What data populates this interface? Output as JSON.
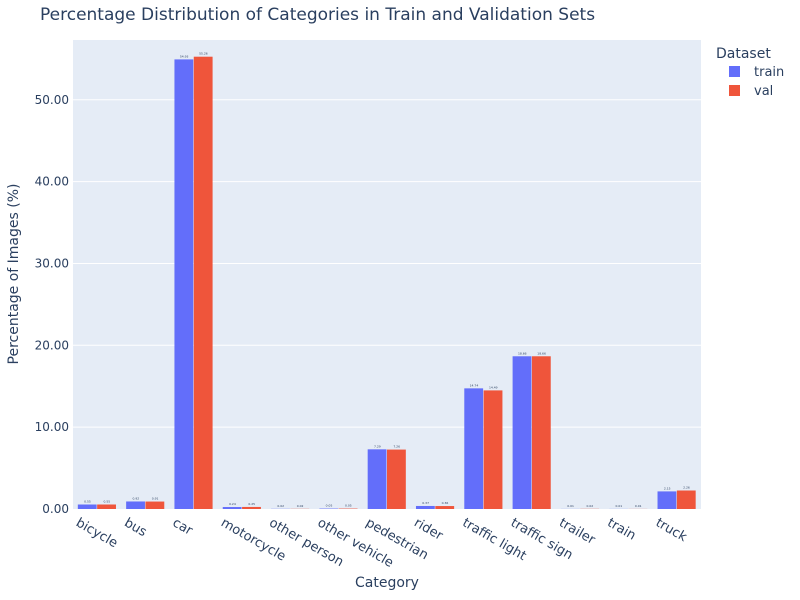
{
  "chart_data": {
    "type": "bar",
    "title": "Percentage Distribution of Categories in Train and Validation Sets",
    "xlabel": "Category",
    "ylabel": "Percentage of Images (%)",
    "ylim": [
      0,
      57.3
    ],
    "yticks": [
      "0.00",
      "10.00",
      "20.00",
      "30.00",
      "40.00",
      "50.00"
    ],
    "grid": true,
    "legend_title": "Dataset",
    "legend_position": "top-right",
    "categories": [
      "bicycle",
      "bus",
      "car",
      "motorcycle",
      "other person",
      "other vehicle",
      "pedestrian",
      "rider",
      "traffic light",
      "traffic sign",
      "trailer",
      "train",
      "truck"
    ],
    "series": [
      {
        "name": "train",
        "color": "#636efa",
        "values": [
          0.55,
          0.92,
          54.93,
          0.24,
          0.02,
          0.05,
          7.29,
          0.37,
          14.74,
          18.66,
          0.01,
          0.01,
          2.15
        ]
      },
      {
        "name": "val",
        "color": "#ef553b",
        "values": [
          0.55,
          0.91,
          55.26,
          0.25,
          0.02,
          0.05,
          7.26,
          0.36,
          14.49,
          18.66,
          0.02,
          0.01,
          2.26
        ]
      }
    ]
  }
}
